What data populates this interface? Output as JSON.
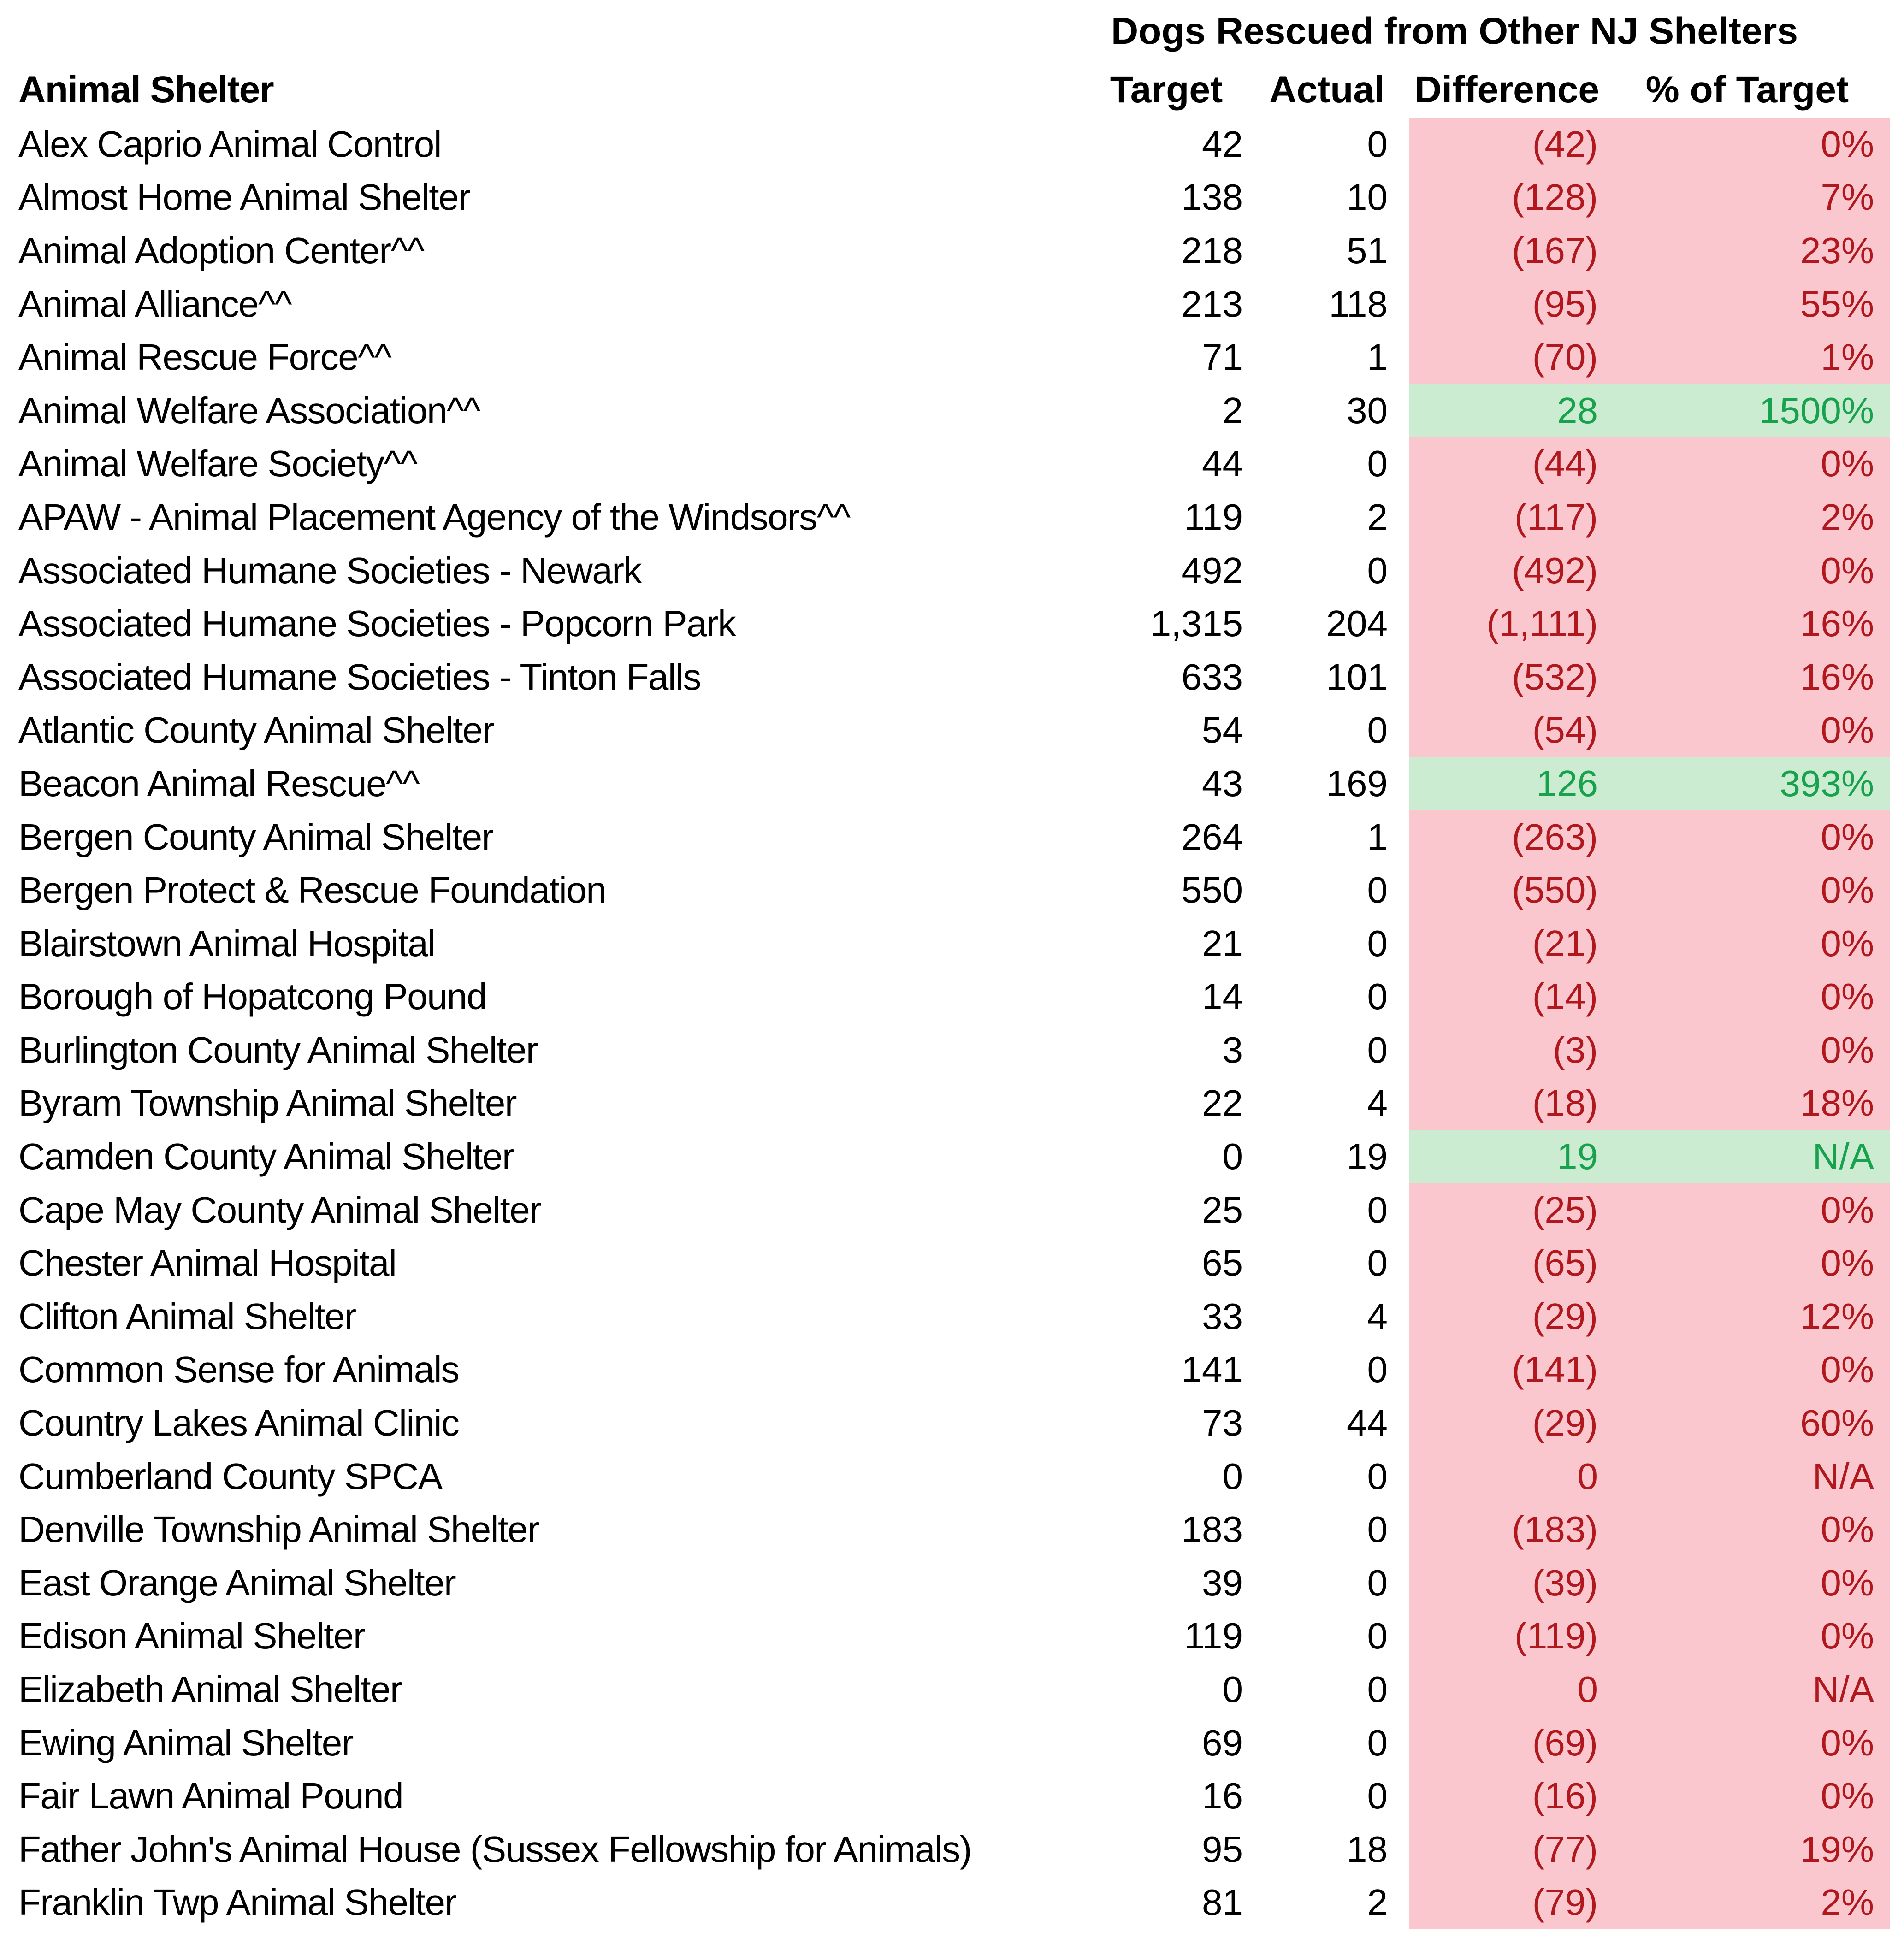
{
  "chart_data": {
    "type": "table",
    "title": "Dogs Rescued from Other NJ Shelters",
    "columns": [
      "Animal Shelter",
      "Target",
      "Actual",
      "Difference",
      "% of Target"
    ],
    "rows": [
      {
        "name": "Alex Caprio Animal Control",
        "target": "42",
        "actual": "0",
        "difference": "(42)",
        "pct_of_target": "0%",
        "status": "negative"
      },
      {
        "name": "Almost Home Animal Shelter",
        "target": "138",
        "actual": "10",
        "difference": "(128)",
        "pct_of_target": "7%",
        "status": "negative"
      },
      {
        "name": "Animal Adoption Center^^",
        "target": "218",
        "actual": "51",
        "difference": "(167)",
        "pct_of_target": "23%",
        "status": "negative"
      },
      {
        "name": "Animal Alliance^^",
        "target": "213",
        "actual": "118",
        "difference": "(95)",
        "pct_of_target": "55%",
        "status": "negative"
      },
      {
        "name": "Animal Rescue Force^^",
        "target": "71",
        "actual": "1",
        "difference": "(70)",
        "pct_of_target": "1%",
        "status": "negative"
      },
      {
        "name": "Animal Welfare Association^^",
        "target": "2",
        "actual": "30",
        "difference": "28",
        "pct_of_target": "1500%",
        "status": "positive"
      },
      {
        "name": "Animal Welfare Society^^",
        "target": "44",
        "actual": "0",
        "difference": "(44)",
        "pct_of_target": "0%",
        "status": "negative"
      },
      {
        "name": "APAW - Animal Placement Agency of the Windsors^^",
        "target": "119",
        "actual": "2",
        "difference": "(117)",
        "pct_of_target": "2%",
        "status": "negative"
      },
      {
        "name": "Associated Humane Societies - Newark",
        "target": "492",
        "actual": "0",
        "difference": "(492)",
        "pct_of_target": "0%",
        "status": "negative"
      },
      {
        "name": "Associated Humane Societies - Popcorn Park",
        "target": "1,315",
        "actual": "204",
        "difference": "(1,111)",
        "pct_of_target": "16%",
        "status": "negative"
      },
      {
        "name": "Associated Humane Societies - Tinton Falls",
        "target": "633",
        "actual": "101",
        "difference": "(532)",
        "pct_of_target": "16%",
        "status": "negative"
      },
      {
        "name": "Atlantic County Animal Shelter",
        "target": "54",
        "actual": "0",
        "difference": "(54)",
        "pct_of_target": "0%",
        "status": "negative"
      },
      {
        "name": "Beacon Animal Rescue^^",
        "target": "43",
        "actual": "169",
        "difference": "126",
        "pct_of_target": "393%",
        "status": "positive"
      },
      {
        "name": "Bergen County Animal Shelter",
        "target": "264",
        "actual": "1",
        "difference": "(263)",
        "pct_of_target": "0%",
        "status": "negative"
      },
      {
        "name": "Bergen Protect & Rescue Foundation",
        "target": "550",
        "actual": "0",
        "difference": "(550)",
        "pct_of_target": "0%",
        "status": "negative"
      },
      {
        "name": "Blairstown Animal Hospital",
        "target": "21",
        "actual": "0",
        "difference": "(21)",
        "pct_of_target": "0%",
        "status": "negative"
      },
      {
        "name": "Borough of Hopatcong Pound",
        "target": "14",
        "actual": "0",
        "difference": "(14)",
        "pct_of_target": "0%",
        "status": "negative"
      },
      {
        "name": "Burlington County Animal Shelter",
        "target": "3",
        "actual": "0",
        "difference": "(3)",
        "pct_of_target": "0%",
        "status": "negative"
      },
      {
        "name": "Byram Township Animal Shelter",
        "target": "22",
        "actual": "4",
        "difference": "(18)",
        "pct_of_target": "18%",
        "status": "negative"
      },
      {
        "name": "Camden County Animal Shelter",
        "target": "0",
        "actual": "19",
        "difference": "19",
        "pct_of_target": "N/A",
        "status": "positive"
      },
      {
        "name": "Cape May County Animal Shelter",
        "target": "25",
        "actual": "0",
        "difference": "(25)",
        "pct_of_target": "0%",
        "status": "negative"
      },
      {
        "name": "Chester Animal Hospital",
        "target": "65",
        "actual": "0",
        "difference": "(65)",
        "pct_of_target": "0%",
        "status": "negative"
      },
      {
        "name": "Clifton Animal Shelter",
        "target": "33",
        "actual": "4",
        "difference": "(29)",
        "pct_of_target": "12%",
        "status": "negative"
      },
      {
        "name": "Common Sense for Animals",
        "target": "141",
        "actual": "0",
        "difference": "(141)",
        "pct_of_target": "0%",
        "status": "negative"
      },
      {
        "name": "Country Lakes Animal Clinic",
        "target": "73",
        "actual": "44",
        "difference": "(29)",
        "pct_of_target": "60%",
        "status": "negative"
      },
      {
        "name": "Cumberland County SPCA",
        "target": "0",
        "actual": "0",
        "difference": "0",
        "pct_of_target": "N/A",
        "status": "negative"
      },
      {
        "name": "Denville Township Animal Shelter",
        "target": "183",
        "actual": "0",
        "difference": "(183)",
        "pct_of_target": "0%",
        "status": "negative"
      },
      {
        "name": "East Orange Animal Shelter",
        "target": "39",
        "actual": "0",
        "difference": "(39)",
        "pct_of_target": "0%",
        "status": "negative"
      },
      {
        "name": "Edison Animal Shelter",
        "target": "119",
        "actual": "0",
        "difference": "(119)",
        "pct_of_target": "0%",
        "status": "negative"
      },
      {
        "name": "Elizabeth Animal Shelter",
        "target": "0",
        "actual": "0",
        "difference": "0",
        "pct_of_target": "N/A",
        "status": "negative"
      },
      {
        "name": "Ewing Animal Shelter",
        "target": "69",
        "actual": "0",
        "difference": "(69)",
        "pct_of_target": "0%",
        "status": "negative"
      },
      {
        "name": "Fair Lawn Animal Pound",
        "target": "16",
        "actual": "0",
        "difference": "(16)",
        "pct_of_target": "0%",
        "status": "negative"
      },
      {
        "name": "Father John's Animal House (Sussex Fellowship for Animals)",
        "target": "95",
        "actual": "18",
        "difference": "(77)",
        "pct_of_target": "19%",
        "status": "negative"
      },
      {
        "name": "Franklin Twp Animal Shelter",
        "target": "81",
        "actual": "2",
        "difference": "(79)",
        "pct_of_target": "2%",
        "status": "negative"
      }
    ]
  },
  "colors": {
    "negative_fill": "#f9c7cd",
    "negative_text": "#b0181e",
    "positive_fill": "#cbecd1",
    "positive_text": "#18a24e",
    "header_text": "#000000",
    "background": "#ffffff"
  }
}
